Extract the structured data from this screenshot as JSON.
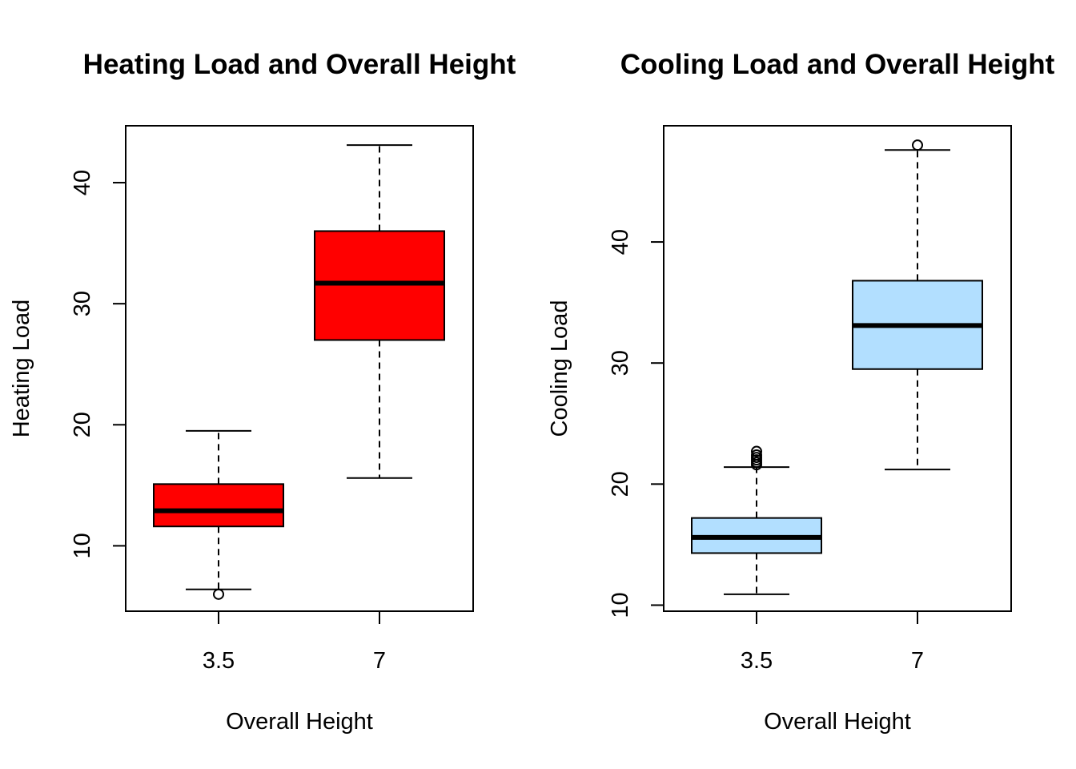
{
  "chart_data": [
    {
      "type": "box",
      "title": "Heating Load and Overall Height",
      "xlabel": "Overall Height",
      "ylabel": "Heating Load",
      "categories": [
        "3.5",
        "7"
      ],
      "yticks": [
        10,
        20,
        30,
        40
      ],
      "ylim": [
        4.6,
        44.7
      ],
      "box_color": "#ff0000",
      "boxes": [
        {
          "category": "3.5",
          "whisker_low": 6.4,
          "q1": 11.6,
          "median": 12.9,
          "q3": 15.1,
          "whisker_high": 19.5,
          "outliers": [
            6.0
          ]
        },
        {
          "category": "7",
          "whisker_low": 15.6,
          "q1": 27.0,
          "median": 31.7,
          "q3": 36.0,
          "whisker_high": 43.1,
          "outliers": []
        }
      ]
    },
    {
      "type": "box",
      "title": "Cooling Load and Overall Height",
      "xlabel": "Overall Height",
      "ylabel": "Cooling Load",
      "categories": [
        "3.5",
        "7"
      ],
      "yticks": [
        10,
        20,
        30,
        40
      ],
      "ylim": [
        9.5,
        49.6
      ],
      "box_color": "#b2dfff",
      "boxes": [
        {
          "category": "3.5",
          "whisker_low": 10.9,
          "q1": 14.3,
          "median": 15.6,
          "q3": 17.2,
          "whisker_high": 21.4,
          "outliers": [
            21.6,
            21.8,
            22.0,
            22.2,
            22.4,
            22.7
          ]
        },
        {
          "category": "7",
          "whisker_low": 21.2,
          "q1": 29.5,
          "median": 33.1,
          "q3": 36.8,
          "whisker_high": 47.6,
          "outliers": [
            48.0
          ]
        }
      ]
    }
  ]
}
